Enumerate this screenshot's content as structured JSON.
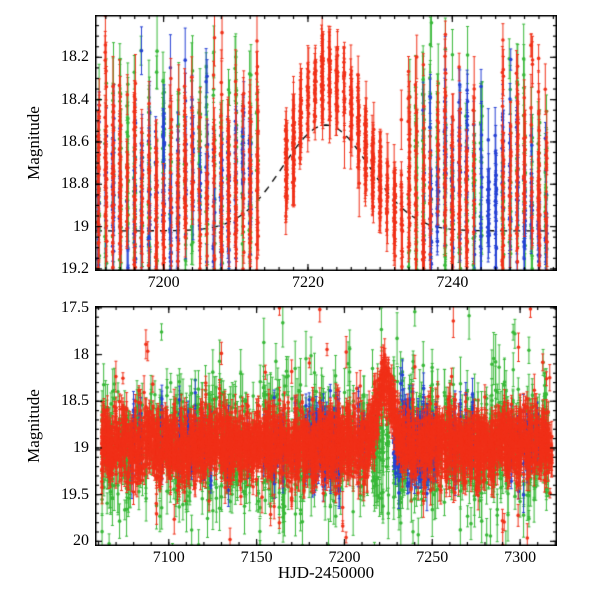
{
  "page": {
    "background": "#ffffff"
  },
  "axes": {
    "xlabel": "HJD-2450000",
    "ylabel": "Magnitude"
  },
  "colors": {
    "axis": "#000000",
    "model_line": "#000000",
    "series_red": "#f03018",
    "series_green": "#38b838",
    "series_blue": "#2540d4"
  },
  "chart_data": [
    {
      "panel": "top",
      "type": "scatter",
      "description": "Microlensing event light curve, zoom on peak; three photometric bands (red, green, blue points) with error bars and dashed model curve",
      "x_range": [
        7190.5,
        7254.5
      ],
      "y_range": [
        18.0,
        19.21
      ],
      "y_axis_inverted": true,
      "x_ticks": {
        "major": [
          7200,
          7220,
          7240
        ],
        "labels": [
          "7200",
          "7220",
          "7240"
        ],
        "minor_step": 2
      },
      "y_ticks": {
        "major": [
          18.2,
          18.4,
          18.6,
          18.8,
          19.0,
          19.2
        ],
        "labels": [
          "18.2",
          "18.4",
          "18.6",
          "18.8",
          "19",
          "19.2"
        ],
        "minor_step": 0.05
      },
      "baseline_mag": 18.82,
      "night_jitter": 0.1,
      "nights": {
        "start": 7191,
        "end": 7253
      },
      "model_curve": {
        "baseline": 19.02,
        "amplitude": 0.5,
        "t_peak": 7222.5,
        "sigma": 6.0,
        "dash": true
      },
      "event": {
        "baseline": 18.98,
        "amplitude": 0.7,
        "t_peak": 7223,
        "sigma": 4.3
      },
      "series": [
        {
          "name": "green",
          "color": "#38b838",
          "points_per_night": 16,
          "scatter": 0.27,
          "err_range": [
            0.06,
            0.2
          ],
          "absent": [
            [
              7214,
              7233
            ],
            [
              7245,
              7246
            ]
          ]
        },
        {
          "name": "blue",
          "color": "#2540d4",
          "points_per_night": 14,
          "scatter": 0.2,
          "err_range": [
            0.05,
            0.16
          ],
          "absent": [
            [
              7213,
              7235
            ]
          ]
        },
        {
          "name": "red",
          "color": "#f03018",
          "points_per_night": 20,
          "scatter": 0.24,
          "err_range": [
            0.05,
            0.16
          ],
          "absent": [
            [
              7214,
              7216
            ],
            [
              7244,
              7246
            ]
          ],
          "follows_event": [
            7217,
            7232
          ],
          "event_scatter": 0.09,
          "event_points_per_night": 30
        }
      ]
    },
    {
      "panel": "bottom",
      "type": "scatter",
      "description": "Full-season light curve of the same field star; magnitude vs HJD with dense nightly sampling in three bands",
      "x_range": [
        7058,
        7321
      ],
      "y_range": [
        17.48,
        20.05
      ],
      "y_axis_inverted": true,
      "x_ticks": {
        "major": [
          7100,
          7150,
          7200,
          7250,
          7300
        ],
        "labels": [
          "7100",
          "7150",
          "7200",
          "7250",
          "7300"
        ],
        "minor_step": 10
      },
      "y_ticks": {
        "major": [
          17.5,
          18.0,
          18.5,
          19.0,
          19.5,
          20.0
        ],
        "labels": [
          "17.5",
          "18",
          "18.5",
          "19",
          "19.5",
          "20"
        ],
        "minor_step": 0.1
      },
      "baseline_mag": 18.99,
      "night_jitter": 0.06,
      "trend_per_day": -0.00025,
      "nights": {
        "start": 7062,
        "end": 7318
      },
      "model_curve": {
        "baseline": 19.02,
        "amplitude": 0.5,
        "t_peak": 7222.5,
        "sigma": 6.0,
        "dash": true
      },
      "event": {
        "baseline": 18.98,
        "amplitude": 0.7,
        "t_peak": 7223,
        "sigma": 4.3
      },
      "series": [
        {
          "name": "green",
          "color": "#38b838",
          "points_per_night": 8,
          "scatter": 0.3,
          "err_range": [
            0.08,
            0.3
          ],
          "present_prob": 0.8,
          "outlier_prob": 0.03
        },
        {
          "name": "blue",
          "color": "#2540d4",
          "points_per_night": 12,
          "scatter": 0.18,
          "err_range": [
            0.06,
            0.2
          ],
          "clusters": [
            [
              7178,
              7196
            ],
            [
              7228,
              7252
            ]
          ],
          "sparse_prob": 0.15
        },
        {
          "name": "red",
          "color": "#f03018",
          "points_per_night": 16,
          "scatter": 0.17,
          "err_range": [
            0.05,
            0.18
          ],
          "follows_event": [
            7214,
            7233
          ],
          "event_scatter": 0.15,
          "outlier_prob": 0.012
        }
      ]
    }
  ]
}
